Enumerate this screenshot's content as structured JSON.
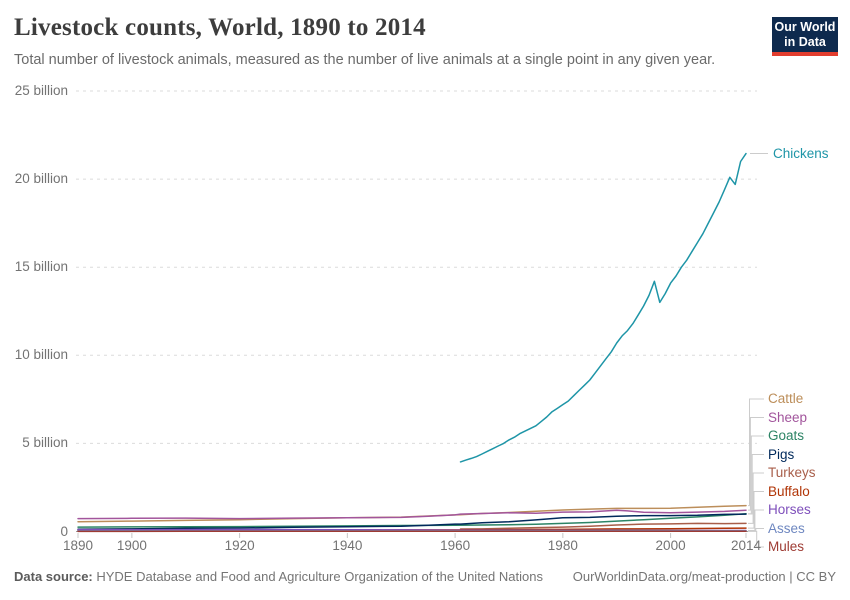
{
  "header": {
    "title": "Livestock counts, World, 1890 to 2014",
    "subtitle": "Total number of livestock animals, measured as the number of live animals at a single point in any given year.",
    "logo": {
      "line1": "Our World",
      "line2": "in Data",
      "bg_color": "#0e2a4e",
      "bar_color": "#e23d2e"
    }
  },
  "footer": {
    "source_label": "Data source:",
    "source_text": " HYDE Database and Food and Agriculture Organization of the United Nations",
    "link_text": "OurWorldinData.org/meat-production | CC BY"
  },
  "chart_data": {
    "type": "line",
    "title": "Livestock counts, World, 1890 to 2014",
    "xlabel": "",
    "ylabel": "",
    "values_unit": "billions of animals",
    "x_range": [
      1890,
      2014
    ],
    "y_range_billions": [
      0,
      25
    ],
    "grid": "dashed horizontal gridlines",
    "legend_position": "right-edge direct labels with gray connectors",
    "x_ticks": [
      1890,
      1900,
      1920,
      1940,
      1960,
      1980,
      2000,
      2014
    ],
    "y_ticks": [
      {
        "v": 0,
        "label": "0"
      },
      {
        "v": 5,
        "label": "5 billion"
      },
      {
        "v": 10,
        "label": "10 billion"
      },
      {
        "v": 15,
        "label": "15 billion"
      },
      {
        "v": 20,
        "label": "20 billion"
      },
      {
        "v": 25,
        "label": "25 billion"
      }
    ],
    "series": [
      {
        "name": "Chickens",
        "color": "#1e95a7",
        "points": [
          [
            1961,
            3.95
          ],
          [
            1962,
            4.05
          ],
          [
            1963,
            4.15
          ],
          [
            1964,
            4.25
          ],
          [
            1965,
            4.4
          ],
          [
            1966,
            4.55
          ],
          [
            1967,
            4.7
          ],
          [
            1968,
            4.85
          ],
          [
            1969,
            5.0
          ],
          [
            1970,
            5.2
          ],
          [
            1971,
            5.35
          ],
          [
            1972,
            5.55
          ],
          [
            1973,
            5.7
          ],
          [
            1974,
            5.85
          ],
          [
            1975,
            6.0
          ],
          [
            1976,
            6.25
          ],
          [
            1977,
            6.5
          ],
          [
            1978,
            6.8
          ],
          [
            1979,
            7.0
          ],
          [
            1980,
            7.2
          ],
          [
            1981,
            7.4
          ],
          [
            1982,
            7.7
          ],
          [
            1983,
            8.0
          ],
          [
            1984,
            8.3
          ],
          [
            1985,
            8.6
          ],
          [
            1986,
            9.0
          ],
          [
            1987,
            9.4
          ],
          [
            1988,
            9.8
          ],
          [
            1989,
            10.2
          ],
          [
            1990,
            10.7
          ],
          [
            1991,
            11.1
          ],
          [
            1992,
            11.4
          ],
          [
            1993,
            11.8
          ],
          [
            1994,
            12.3
          ],
          [
            1995,
            12.8
          ],
          [
            1996,
            13.4
          ],
          [
            1997,
            14.2
          ],
          [
            1998,
            13.0
          ],
          [
            1999,
            13.5
          ],
          [
            2000,
            14.1
          ],
          [
            2001,
            14.5
          ],
          [
            2002,
            15.0
          ],
          [
            2003,
            15.4
          ],
          [
            2004,
            15.9
          ],
          [
            2005,
            16.4
          ],
          [
            2006,
            16.9
          ],
          [
            2007,
            17.5
          ],
          [
            2008,
            18.1
          ],
          [
            2009,
            18.7
          ],
          [
            2010,
            19.4
          ],
          [
            2011,
            20.1
          ],
          [
            2012,
            19.7
          ],
          [
            2013,
            21.0
          ],
          [
            2014,
            21.45
          ]
        ]
      },
      {
        "name": "Cattle",
        "color": "#bc8e5a",
        "points": [
          [
            1890,
            0.55
          ],
          [
            1900,
            0.59
          ],
          [
            1910,
            0.63
          ],
          [
            1920,
            0.67
          ],
          [
            1930,
            0.73
          ],
          [
            1940,
            0.78
          ],
          [
            1950,
            0.82
          ],
          [
            1955,
            0.88
          ],
          [
            1960,
            0.94
          ],
          [
            1961,
            0.95
          ],
          [
            1965,
            1.02
          ],
          [
            1970,
            1.08
          ],
          [
            1975,
            1.15
          ],
          [
            1980,
            1.22
          ],
          [
            1985,
            1.27
          ],
          [
            1990,
            1.31
          ],
          [
            1995,
            1.31
          ],
          [
            2000,
            1.32
          ],
          [
            2005,
            1.38
          ],
          [
            2010,
            1.43
          ],
          [
            2014,
            1.47
          ]
        ]
      },
      {
        "name": "Sheep",
        "color": "#a2559c",
        "points": [
          [
            1890,
            0.73
          ],
          [
            1900,
            0.75
          ],
          [
            1910,
            0.76
          ],
          [
            1920,
            0.73
          ],
          [
            1930,
            0.76
          ],
          [
            1940,
            0.78
          ],
          [
            1950,
            0.8
          ],
          [
            1955,
            0.87
          ],
          [
            1960,
            0.94
          ],
          [
            1961,
            0.99
          ],
          [
            1965,
            1.02
          ],
          [
            1970,
            1.06
          ],
          [
            1975,
            1.04
          ],
          [
            1980,
            1.1
          ],
          [
            1985,
            1.11
          ],
          [
            1990,
            1.21
          ],
          [
            1992,
            1.17
          ],
          [
            1995,
            1.09
          ],
          [
            2000,
            1.06
          ],
          [
            2005,
            1.1
          ],
          [
            2010,
            1.14
          ],
          [
            2014,
            1.21
          ]
        ]
      },
      {
        "name": "Goats",
        "color": "#2c8465",
        "points": [
          [
            1890,
            0.25
          ],
          [
            1900,
            0.26
          ],
          [
            1910,
            0.27
          ],
          [
            1920,
            0.28
          ],
          [
            1930,
            0.3
          ],
          [
            1940,
            0.32
          ],
          [
            1950,
            0.34
          ],
          [
            1960,
            0.35
          ],
          [
            1965,
            0.37
          ],
          [
            1970,
            0.38
          ],
          [
            1975,
            0.41
          ],
          [
            1980,
            0.46
          ],
          [
            1985,
            0.51
          ],
          [
            1990,
            0.59
          ],
          [
            1995,
            0.67
          ],
          [
            2000,
            0.75
          ],
          [
            2005,
            0.83
          ],
          [
            2010,
            0.92
          ],
          [
            2014,
            1.01
          ]
        ]
      },
      {
        "name": "Pigs",
        "color": "#00295b",
        "points": [
          [
            1890,
            0.13
          ],
          [
            1900,
            0.15
          ],
          [
            1910,
            0.18
          ],
          [
            1920,
            0.2
          ],
          [
            1930,
            0.24
          ],
          [
            1940,
            0.27
          ],
          [
            1950,
            0.3
          ],
          [
            1955,
            0.36
          ],
          [
            1960,
            0.42
          ],
          [
            1961,
            0.42
          ],
          [
            1965,
            0.5
          ],
          [
            1970,
            0.55
          ],
          [
            1975,
            0.66
          ],
          [
            1980,
            0.78
          ],
          [
            1985,
            0.8
          ],
          [
            1990,
            0.86
          ],
          [
            1995,
            0.9
          ],
          [
            2000,
            0.9
          ],
          [
            2005,
            0.92
          ],
          [
            2010,
            0.97
          ],
          [
            2014,
            0.99
          ]
        ]
      },
      {
        "name": "Turkeys",
        "color": "#a85e4a",
        "points": [
          [
            1961,
            0.14
          ],
          [
            1965,
            0.15
          ],
          [
            1970,
            0.19
          ],
          [
            1975,
            0.22
          ],
          [
            1980,
            0.25
          ],
          [
            1985,
            0.3
          ],
          [
            1990,
            0.37
          ],
          [
            1995,
            0.42
          ],
          [
            2000,
            0.43
          ],
          [
            2005,
            0.46
          ],
          [
            2010,
            0.45
          ],
          [
            2014,
            0.46
          ]
        ]
      },
      {
        "name": "Buffalo",
        "color": "#b13507",
        "points": [
          [
            1890,
            0.06
          ],
          [
            1910,
            0.07
          ],
          [
            1930,
            0.08
          ],
          [
            1950,
            0.09
          ],
          [
            1961,
            0.09
          ],
          [
            1970,
            0.11
          ],
          [
            1980,
            0.12
          ],
          [
            1990,
            0.15
          ],
          [
            2000,
            0.16
          ],
          [
            2010,
            0.19
          ],
          [
            2014,
            0.195
          ]
        ]
      },
      {
        "name": "Horses",
        "color": "#7e4fbb",
        "points": [
          [
            1890,
            0.094
          ],
          [
            1900,
            0.1
          ],
          [
            1910,
            0.11
          ],
          [
            1920,
            0.112
          ],
          [
            1930,
            0.11
          ],
          [
            1940,
            0.1
          ],
          [
            1950,
            0.088
          ],
          [
            1960,
            0.075
          ],
          [
            1970,
            0.066
          ],
          [
            1980,
            0.062
          ],
          [
            1990,
            0.061
          ],
          [
            2000,
            0.059
          ],
          [
            2010,
            0.059
          ],
          [
            2014,
            0.059
          ]
        ]
      },
      {
        "name": "Asses",
        "color": "#6e87c0",
        "points": [
          [
            1890,
            0.035
          ],
          [
            1900,
            0.037
          ],
          [
            1910,
            0.039
          ],
          [
            1920,
            0.04
          ],
          [
            1930,
            0.042
          ],
          [
            1940,
            0.043
          ],
          [
            1950,
            0.045
          ],
          [
            1960,
            0.047
          ],
          [
            1970,
            0.049
          ],
          [
            1980,
            0.052
          ],
          [
            1990,
            0.054
          ],
          [
            2000,
            0.049
          ],
          [
            2010,
            0.045
          ],
          [
            2014,
            0.043
          ]
        ]
      },
      {
        "name": "Mules",
        "color": "#9e3b33",
        "points": [
          [
            1890,
            0.008
          ],
          [
            1910,
            0.01
          ],
          [
            1930,
            0.011
          ],
          [
            1950,
            0.012
          ],
          [
            1960,
            0.013
          ],
          [
            1970,
            0.0135
          ],
          [
            1980,
            0.014
          ],
          [
            1990,
            0.0135
          ],
          [
            2000,
            0.012
          ],
          [
            2010,
            0.01
          ],
          [
            2014,
            0.009
          ]
        ]
      }
    ]
  }
}
